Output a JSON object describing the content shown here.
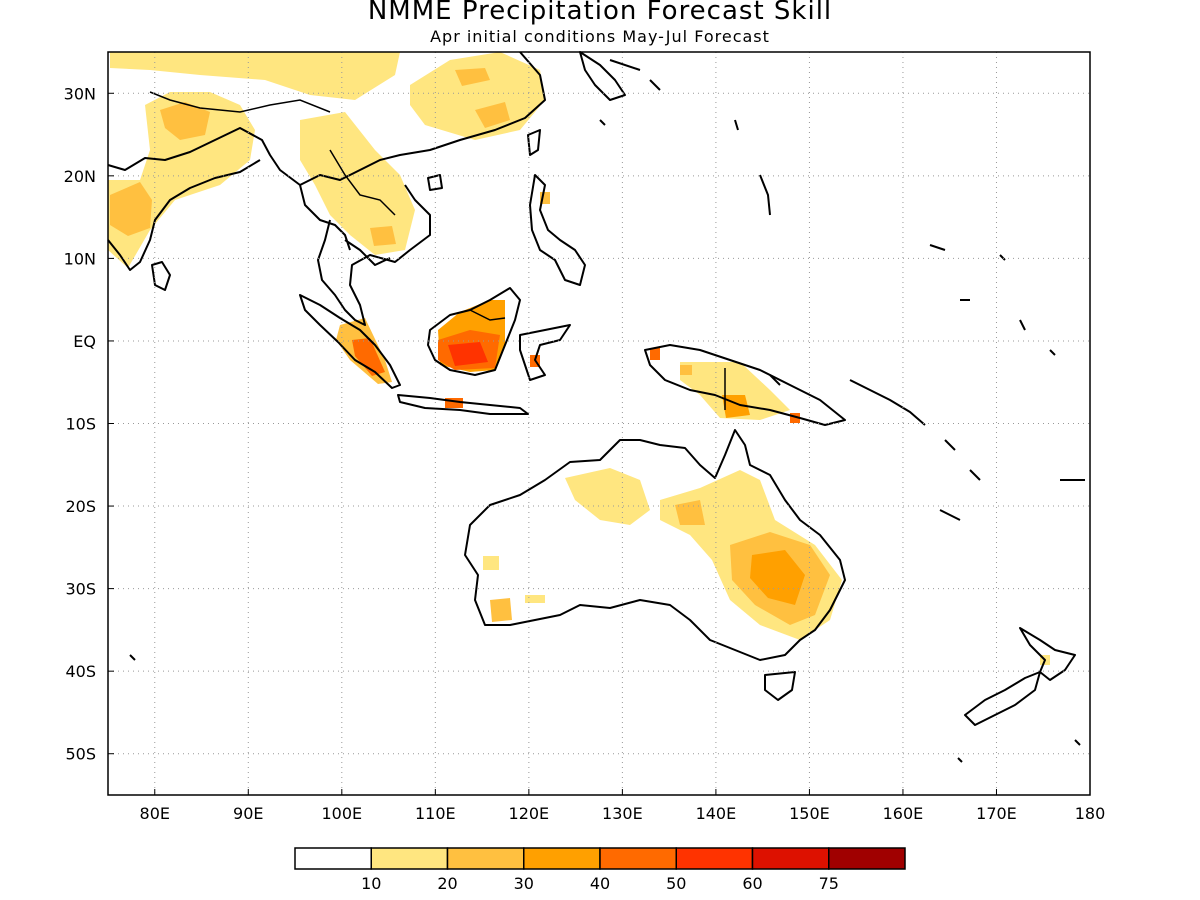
{
  "title": "NMME Precipitation Forecast Skill",
  "subtitle": "Apr initial conditions  May-Jul Forecast",
  "map": {
    "lon_range": [
      75,
      180
    ],
    "lat_range": [
      -55,
      35
    ],
    "grid": true,
    "lon_ticks": [
      "80E",
      "90E",
      "100E",
      "110E",
      "120E",
      "130E",
      "140E",
      "150E",
      "160E",
      "170E",
      "180"
    ],
    "lat_ticks": [
      "30N",
      "20N",
      "10N",
      "EQ",
      "10S",
      "20S",
      "30S",
      "40S",
      "50S"
    ]
  },
  "legend": {
    "labels": [
      "10",
      "20",
      "30",
      "40",
      "50",
      "60",
      "75"
    ],
    "colors": [
      "#ffffff",
      "#ffe680",
      "#ffc040",
      "#ffa000",
      "#ff6a00",
      "#ff3300",
      "#dd1100",
      "#a00000"
    ]
  }
}
